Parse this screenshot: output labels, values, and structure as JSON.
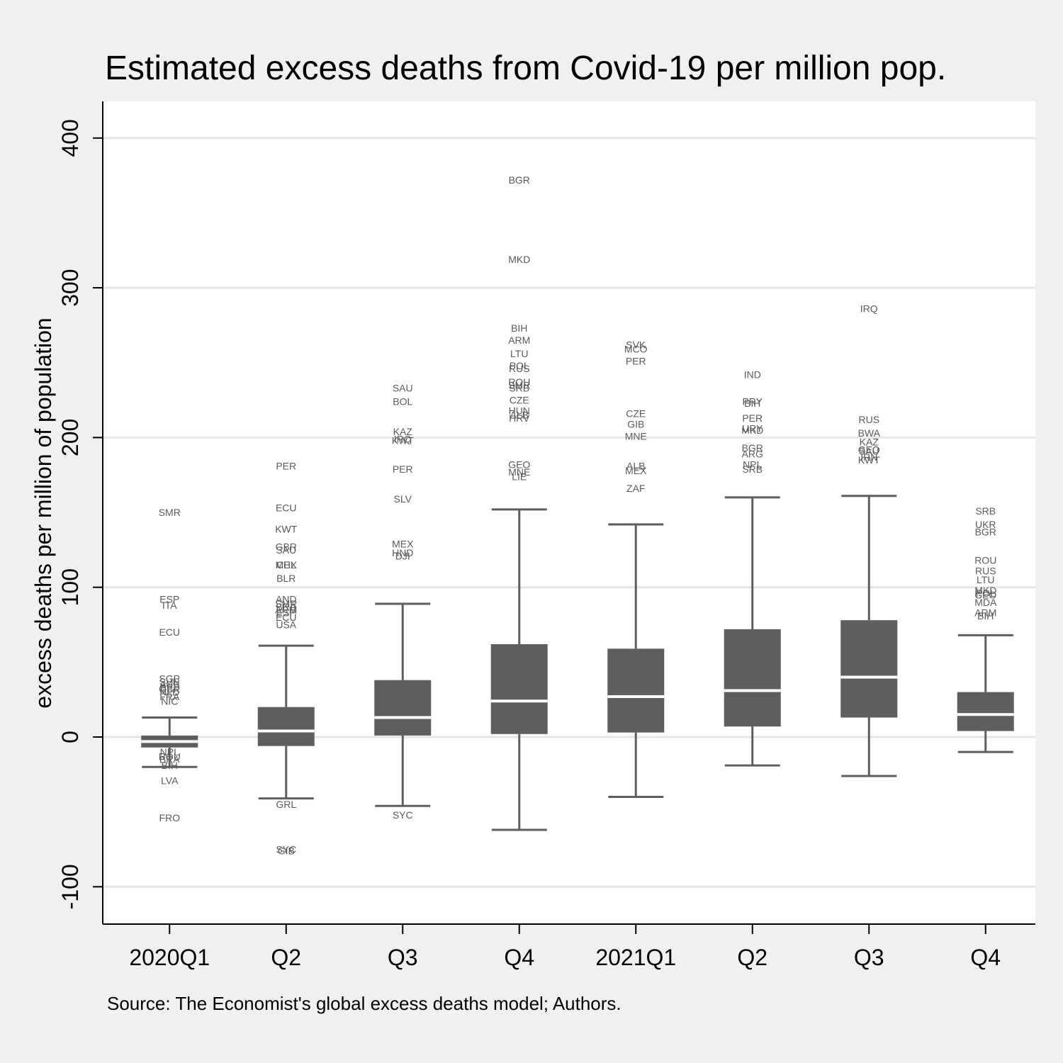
{
  "chart_data": {
    "type": "box",
    "title": "Estimated excess deaths from Covid-19 per million pop.",
    "ylabel": "excess deaths per million of population",
    "note": "Source: The Economist's global excess deaths model; Authors.",
    "ylim": [
      -125,
      425
    ],
    "yticks": [
      -100,
      0,
      100,
      200,
      300,
      400
    ],
    "yticklabels": [
      "-100",
      "0",
      "100",
      "200",
      "300",
      "400"
    ],
    "grid": true,
    "colors": {
      "box": "#5e5e5e",
      "median": "#ffffff",
      "whisker": "#5e5e5e",
      "grid": "#e6e6e6",
      "outlier_text": "#5a5a5a"
    },
    "categories": [
      "2020Q1",
      "Q2",
      "Q3",
      "Q4",
      "2021Q1",
      "Q2",
      "Q3",
      "Q4"
    ],
    "boxes": [
      {
        "q1": -7,
        "median": -3,
        "q3": 1,
        "whisker_low": -20,
        "whisker_high": 13,
        "outliers": [
          {
            "label": "SMR",
            "value": 150
          },
          {
            "label": "ESP",
            "value": 92
          },
          {
            "label": "ITA",
            "value": 88
          },
          {
            "label": "ECU",
            "value": 70
          },
          {
            "label": "SGP",
            "value": 39
          },
          {
            "label": "SVN",
            "value": 37
          },
          {
            "label": "AUS",
            "value": 35
          },
          {
            "label": "BEL",
            "value": 33
          },
          {
            "label": "GBR",
            "value": 32
          },
          {
            "label": "NLD",
            "value": 30
          },
          {
            "label": "FRA",
            "value": 27
          },
          {
            "label": "NIC",
            "value": 24
          },
          {
            "label": "NPL",
            "value": -10
          },
          {
            "label": "ROU",
            "value": -13
          },
          {
            "label": "BRA",
            "value": -15
          },
          {
            "label": "BIH",
            "value": -19
          },
          {
            "label": "LVA",
            "value": -29
          },
          {
            "label": "FRO",
            "value": -54
          }
        ]
      },
      {
        "q1": -6,
        "median": 4,
        "q3": 20,
        "whisker_low": -41,
        "whisker_high": 61,
        "outliers": [
          {
            "label": "PER",
            "value": 181
          },
          {
            "label": "ECU",
            "value": 153
          },
          {
            "label": "KWT",
            "value": 139
          },
          {
            "label": "GBR",
            "value": 127
          },
          {
            "label": "SAU",
            "value": 125
          },
          {
            "label": "MEX",
            "value": 115
          },
          {
            "label": "CHL",
            "value": 115
          },
          {
            "label": "BLR",
            "value": 106
          },
          {
            "label": "AND",
            "value": 92
          },
          {
            "label": "SMR",
            "value": 89
          },
          {
            "label": "BRA",
            "value": 87
          },
          {
            "label": "ARM",
            "value": 85
          },
          {
            "label": "ESP",
            "value": 83
          },
          {
            "label": "ECU",
            "value": 80
          },
          {
            "label": "USA",
            "value": 75
          },
          {
            "label": "GRL",
            "value": -45
          },
          {
            "label": "SYC",
            "value": -75
          },
          {
            "label": "GIB",
            "value": -76
          }
        ]
      },
      {
        "q1": 1,
        "median": 13,
        "q3": 38,
        "whisker_low": -46,
        "whisker_high": 89,
        "outliers": [
          {
            "label": "SAU",
            "value": 233
          },
          {
            "label": "BOL",
            "value": 224
          },
          {
            "label": "KAZ",
            "value": 204
          },
          {
            "label": "IRQ",
            "value": 199
          },
          {
            "label": "KWT",
            "value": 198
          },
          {
            "label": "PER",
            "value": 179
          },
          {
            "label": "SLV",
            "value": 159
          },
          {
            "label": "MEX",
            "value": 129
          },
          {
            "label": "HND",
            "value": 123
          },
          {
            "label": "DJI",
            "value": 121
          },
          {
            "label": "SYC",
            "value": -52
          }
        ]
      },
      {
        "q1": 2,
        "median": 24,
        "q3": 62,
        "whisker_low": -62,
        "whisker_high": 152,
        "outliers": [
          {
            "label": "BGR",
            "value": 372
          },
          {
            "label": "MKD",
            "value": 319
          },
          {
            "label": "BIH",
            "value": 273
          },
          {
            "label": "ARM",
            "value": 265
          },
          {
            "label": "LTU",
            "value": 256
          },
          {
            "label": "POL",
            "value": 248
          },
          {
            "label": "RUS",
            "value": 246
          },
          {
            "label": "ROU",
            "value": 237
          },
          {
            "label": "SMR",
            "value": 235
          },
          {
            "label": "SRB",
            "value": 233
          },
          {
            "label": "CZE",
            "value": 225
          },
          {
            "label": "HUN",
            "value": 218
          },
          {
            "label": "ALB",
            "value": 215
          },
          {
            "label": "HRV",
            "value": 213
          },
          {
            "label": "GEO",
            "value": 182
          },
          {
            "label": "MNE",
            "value": 177
          },
          {
            "label": "LIE",
            "value": 174
          }
        ]
      },
      {
        "q1": 3,
        "median": 27,
        "q3": 59,
        "whisker_low": -40,
        "whisker_high": 142,
        "outliers": [
          {
            "label": "SVK",
            "value": 262
          },
          {
            "label": "MCO",
            "value": 259
          },
          {
            "label": "PER",
            "value": 251
          },
          {
            "label": "CZE",
            "value": 216
          },
          {
            "label": "GIB",
            "value": 209
          },
          {
            "label": "MNE",
            "value": 201
          },
          {
            "label": "ALB",
            "value": 181
          },
          {
            "label": "MEX",
            "value": 178
          },
          {
            "label": "ZAF",
            "value": 166
          }
        ]
      },
      {
        "q1": 7,
        "median": 31,
        "q3": 72,
        "whisker_low": -19,
        "whisker_high": 160,
        "outliers": [
          {
            "label": "IND",
            "value": 242
          },
          {
            "label": "PRY",
            "value": 224
          },
          {
            "label": "BIH",
            "value": 223
          },
          {
            "label": "PER",
            "value": 213
          },
          {
            "label": "URY",
            "value": 206
          },
          {
            "label": "MKD",
            "value": 205
          },
          {
            "label": "BGR",
            "value": 193
          },
          {
            "label": "ARG",
            "value": 189
          },
          {
            "label": "NPL",
            "value": 182
          },
          {
            "label": "SRB",
            "value": 179
          }
        ]
      },
      {
        "q1": 13,
        "median": 40,
        "q3": 78,
        "whisker_low": -26,
        "whisker_high": 161,
        "outliers": [
          {
            "label": "IRQ",
            "value": 286
          },
          {
            "label": "RUS",
            "value": 212
          },
          {
            "label": "BWA",
            "value": 203
          },
          {
            "label": "KAZ",
            "value": 197
          },
          {
            "label": "GEO",
            "value": 192
          },
          {
            "label": "SAU",
            "value": 191
          },
          {
            "label": "IRN",
            "value": 187
          },
          {
            "label": "KWT",
            "value": 185
          }
        ]
      },
      {
        "q1": 4,
        "median": 15,
        "q3": 30,
        "whisker_low": -10,
        "whisker_high": 68,
        "outliers": [
          {
            "label": "SRB",
            "value": 151
          },
          {
            "label": "UKR",
            "value": 142
          },
          {
            "label": "BGR",
            "value": 137
          },
          {
            "label": "ROU",
            "value": 118
          },
          {
            "label": "RUS",
            "value": 111
          },
          {
            "label": "LTU",
            "value": 105
          },
          {
            "label": "MKD",
            "value": 98
          },
          {
            "label": "POL",
            "value": 96
          },
          {
            "label": "GEO",
            "value": 95
          },
          {
            "label": "MDA",
            "value": 90
          },
          {
            "label": "ARM",
            "value": 83
          },
          {
            "label": "BIH",
            "value": 81
          }
        ]
      }
    ]
  }
}
